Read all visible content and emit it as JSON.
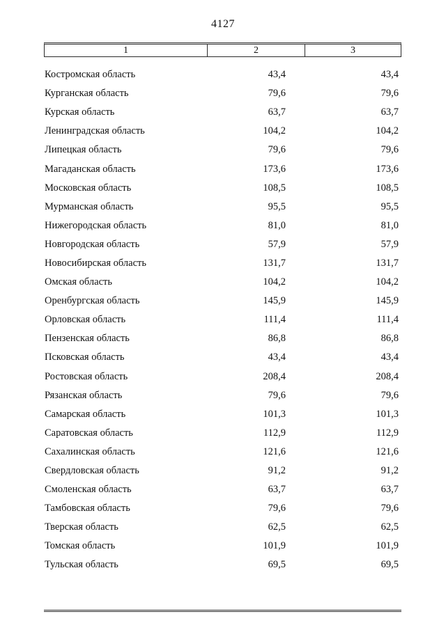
{
  "page": {
    "number": "4127"
  },
  "table": {
    "headers": [
      "1",
      "2",
      "3"
    ],
    "rows": [
      {
        "name": "Костромская область",
        "v2": "43,4",
        "v3": "43,4"
      },
      {
        "name": "Курганская область",
        "v2": "79,6",
        "v3": "79,6"
      },
      {
        "name": "Курская область",
        "v2": "63,7",
        "v3": "63,7"
      },
      {
        "name": "Ленинградская область",
        "v2": "104,2",
        "v3": "104,2"
      },
      {
        "name": "Липецкая область",
        "v2": "79,6",
        "v3": "79,6"
      },
      {
        "name": "Магаданская область",
        "v2": "173,6",
        "v3": "173,6"
      },
      {
        "name": "Московская область",
        "v2": "108,5",
        "v3": "108,5"
      },
      {
        "name": "Мурманская область",
        "v2": "95,5",
        "v3": "95,5"
      },
      {
        "name": "Нижегородская область",
        "v2": "81,0",
        "v3": "81,0"
      },
      {
        "name": "Новгородская область",
        "v2": "57,9",
        "v3": "57,9"
      },
      {
        "name": "Новосибирская область",
        "v2": "131,7",
        "v3": "131,7"
      },
      {
        "name": "Омская область",
        "v2": "104,2",
        "v3": "104,2"
      },
      {
        "name": "Оренбургская область",
        "v2": "145,9",
        "v3": "145,9"
      },
      {
        "name": "Орловская область",
        "v2": "111,4",
        "v3": "111,4"
      },
      {
        "name": "Пензенская область",
        "v2": "86,8",
        "v3": "86,8"
      },
      {
        "name": "Псковская область",
        "v2": "43,4",
        "v3": "43,4"
      },
      {
        "name": "Ростовская область",
        "v2": "208,4",
        "v3": "208,4"
      },
      {
        "name": "Рязанская область",
        "v2": "79,6",
        "v3": "79,6"
      },
      {
        "name": "Самарская область",
        "v2": "101,3",
        "v3": "101,3"
      },
      {
        "name": "Саратовская область",
        "v2": "112,9",
        "v3": "112,9"
      },
      {
        "name": "Сахалинская область",
        "v2": "121,6",
        "v3": "121,6"
      },
      {
        "name": "Свердловская область",
        "v2": "91,2",
        "v3": "91,2"
      },
      {
        "name": "Смоленская область",
        "v2": "63,7",
        "v3": "63,7"
      },
      {
        "name": "Тамбовская область",
        "v2": "79,6",
        "v3": "79,6"
      },
      {
        "name": "Тверская область",
        "v2": "62,5",
        "v3": "62,5"
      },
      {
        "name": "Томская область",
        "v2": "101,9",
        "v3": "101,9"
      },
      {
        "name": "Тульская область",
        "v2": "69,5",
        "v3": "69,5"
      }
    ]
  }
}
